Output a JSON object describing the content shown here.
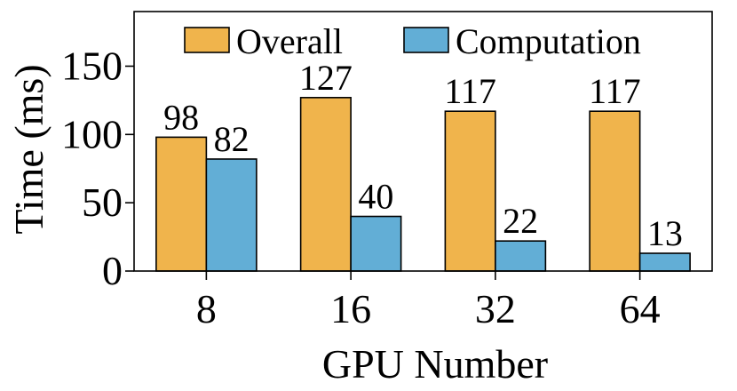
{
  "chart_data": {
    "type": "bar",
    "categories": [
      "8",
      "16",
      "32",
      "64"
    ],
    "series": [
      {
        "name": "Overall",
        "values": [
          98,
          127,
          117,
          117
        ],
        "color": "#F0B44C"
      },
      {
        "name": "Computation",
        "values": [
          82,
          40,
          22,
          13
        ],
        "color": "#62AED6"
      }
    ],
    "data_labels": [
      [
        "98",
        "127",
        "117",
        "117"
      ],
      [
        "82",
        "40",
        "22",
        "13"
      ]
    ],
    "xlabel": "GPU Number",
    "ylabel": "Time (ms)",
    "ylim": [
      0,
      190
    ],
    "yticks": [
      "0",
      "50",
      "100",
      "150"
    ],
    "ytick_values": [
      0,
      50,
      100,
      150
    ],
    "grid": false,
    "legend_position": "top",
    "bar_edge_color": "#000000"
  }
}
